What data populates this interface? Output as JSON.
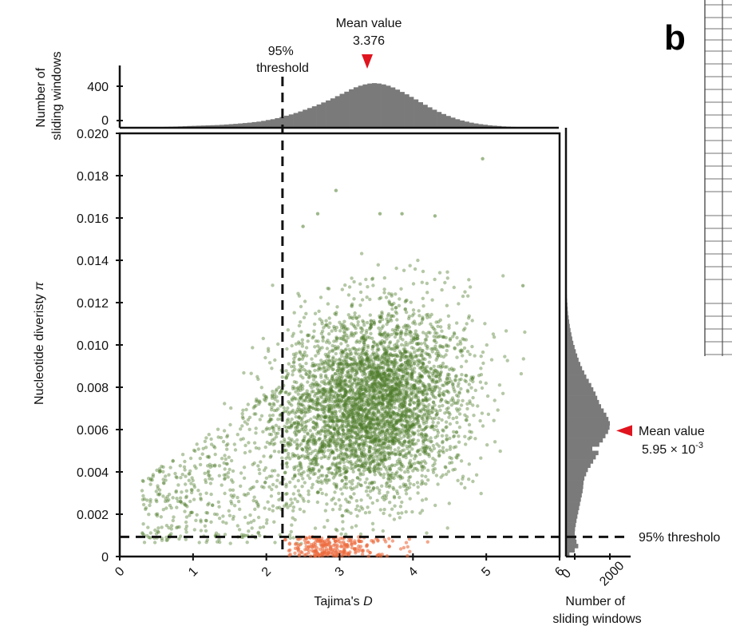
{
  "panel_label": "b",
  "colors": {
    "green": "#4f7d2c",
    "orange": "#ec6a3e",
    "hist_gray": "#7a7a7a",
    "marker_red": "#e0141e",
    "threshold_line": "#111111"
  },
  "chart_data": {
    "type": "scatter",
    "xlabel": "Tajima's D",
    "ylabel": "Nucleotide diveristy π",
    "xlim": [
      0,
      6
    ],
    "ylim": [
      0,
      0.02
    ],
    "x_ticks": [
      "0",
      "1",
      "2",
      "3",
      "4",
      "5",
      "6"
    ],
    "y_ticks": [
      "0",
      "0.002",
      "0.004",
      "0.006",
      "0.008",
      "0.010",
      "0.012",
      "0.014",
      "0.016",
      "0.018",
      "0.020"
    ],
    "grid": false,
    "legend": "none",
    "thresholds": {
      "tajima_d": 2.22,
      "pi": 0.00093
    },
    "scatter_summary": {
      "green_points": {
        "x_mean": 3.45,
        "x_sd": 0.6,
        "y_mean": 0.0072,
        "y_sd": 0.0022,
        "x_range": [
          0.2,
          5.7
        ],
        "y_range": [
          0.0005,
          0.0189
        ]
      },
      "orange_points": {
        "x_range": [
          2.22,
          4.3
        ],
        "y_range": [
          0.0,
          0.00093
        ]
      }
    },
    "outlier_points": [
      {
        "x": 4.95,
        "y": 0.0188
      },
      {
        "x": 2.95,
        "y": 0.0173
      },
      {
        "x": 2.7,
        "y": 0.0162
      },
      {
        "x": 3.55,
        "y": 0.0162
      },
      {
        "x": 3.85,
        "y": 0.0162
      },
      {
        "x": 4.3,
        "y": 0.0161
      },
      {
        "x": 5.5,
        "y": 0.0128
      },
      {
        "x": 2.5,
        "y": 0.0156
      }
    ],
    "top_histogram": {
      "ylabel": "Number of sliding windows",
      "y_ticks": [
        "0",
        "400"
      ],
      "ymax": 600,
      "mean_label": "Mean value",
      "mean_value": "3.376",
      "mean_x": 3.376,
      "bin_edges": [
        0.1,
        5.9
      ],
      "counts": [
        1,
        2,
        2,
        3,
        4,
        5,
        6,
        8,
        10,
        12,
        14,
        16,
        18,
        20,
        22,
        24,
        26,
        28,
        30,
        32,
        34,
        38,
        42,
        46,
        50,
        55,
        60,
        66,
        72,
        80,
        90,
        100,
        112,
        125,
        140,
        155,
        172,
        190,
        210,
        230,
        250,
        272,
        295,
        318,
        342,
        368,
        395,
        420,
        448,
        472,
        490,
        505,
        515,
        520,
        515,
        505,
        490,
        470,
        445,
        418,
        390,
        360,
        330,
        298,
        268,
        238,
        210,
        184,
        160,
        138,
        118,
        100,
        85,
        72,
        60,
        50,
        42,
        35,
        29,
        24,
        20,
        16,
        13,
        10,
        8,
        6,
        5,
        4,
        3,
        2,
        1,
        1
      ],
      "threshold_label": "95%\nthreshold"
    },
    "right_histogram": {
      "xlabel": "Number of sliding windows",
      "x_ticks": [
        "0",
        "2000"
      ],
      "xmax": 2600,
      "mean_label": "Mean value",
      "mean_value": "5.95 × 10",
      "mean_exponent": "-3",
      "mean_y": 0.00595,
      "threshold_label": "95% thresholo",
      "bins_y_step": 0.0002,
      "counts": [
        200,
        500,
        700,
        600,
        550,
        500,
        520,
        560,
        600,
        650,
        700,
        750,
        800,
        850,
        900,
        950,
        980,
        1000,
        1050,
        1150,
        1250,
        1400,
        1550,
        1700,
        1850,
        1500,
        1900,
        2100,
        2250,
        2400,
        2480,
        2500,
        2420,
        2300,
        2150,
        2000,
        1880,
        1780,
        1680,
        1560,
        1440,
        1300,
        1160,
        1040,
        920,
        820,
        720,
        640,
        560,
        490,
        420,
        360,
        310,
        260,
        220,
        180,
        150,
        120,
        100,
        80,
        62,
        48,
        36,
        26,
        18,
        12,
        8,
        5,
        3,
        2
      ]
    }
  }
}
